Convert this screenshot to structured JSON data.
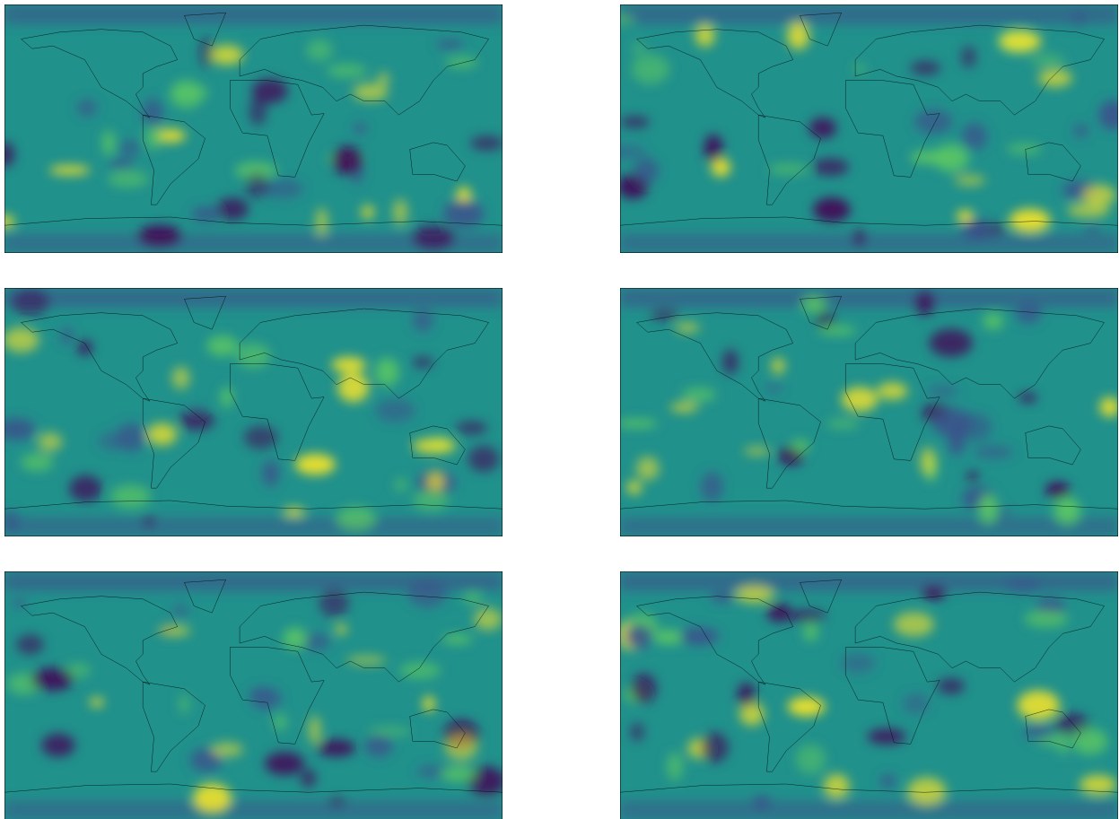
{
  "colormap": [
    "#440154",
    "#3b528b",
    "#21918c",
    "#5ec962",
    "#fde725"
  ]
}
